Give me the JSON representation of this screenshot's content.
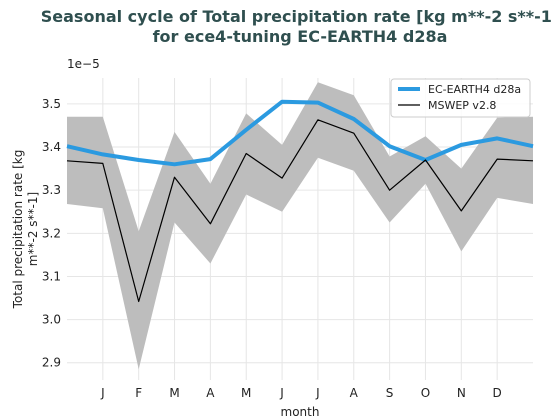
{
  "chart_data": {
    "type": "line",
    "title_line1": "Seasonal cycle of Total precipitation rate [kg m**-2 s**-1]",
    "title_line2": "for ece4-tuning EC-EARTH4 d28a",
    "xlabel": "month",
    "ylabel_line1": "Total precipitation rate [kg",
    "ylabel_line2": "m**-2 s**-1]",
    "y_offset_label": "1e−5",
    "categories": [
      "J",
      "F",
      "M",
      "A",
      "M",
      "J",
      "J",
      "A",
      "S",
      "O",
      "N",
      "D"
    ],
    "yticks": [
      "2.9",
      "3.0",
      "3.1",
      "3.2",
      "3.3",
      "3.4",
      "3.5"
    ],
    "ylim": [
      2.86,
      3.56
    ],
    "grid": true,
    "legend_position": "top-right",
    "series": [
      {
        "name": "EC-EARTH4 d28a",
        "color": "#2b9ae0",
        "values": [
          3.383,
          3.37,
          3.36,
          3.372,
          3.44,
          3.505,
          3.503,
          3.465,
          3.402,
          3.37,
          3.405,
          3.42
        ],
        "wrap_start": 3.402,
        "wrap_end": 3.402
      },
      {
        "name": "MSWEP v2.8",
        "color": "#000000",
        "values": [
          3.362,
          3.042,
          3.33,
          3.222,
          3.385,
          3.328,
          3.463,
          3.432,
          3.3,
          3.37,
          3.252,
          3.372
        ],
        "wrap_start": 3.368,
        "wrap_end": 3.368,
        "band_upper": [
          3.47,
          3.205,
          3.435,
          3.315,
          3.478,
          3.405,
          3.55,
          3.52,
          3.378,
          3.425,
          3.35,
          3.468
        ],
        "band_lower": [
          3.258,
          2.885,
          3.225,
          3.13,
          3.29,
          3.25,
          3.375,
          3.345,
          3.225,
          3.315,
          3.158,
          3.282
        ],
        "band_wrap_start": [
          3.47,
          3.268
        ],
        "band_wrap_end": [
          3.47,
          3.268
        ],
        "band_color": "#bdbdbd"
      }
    ]
  }
}
